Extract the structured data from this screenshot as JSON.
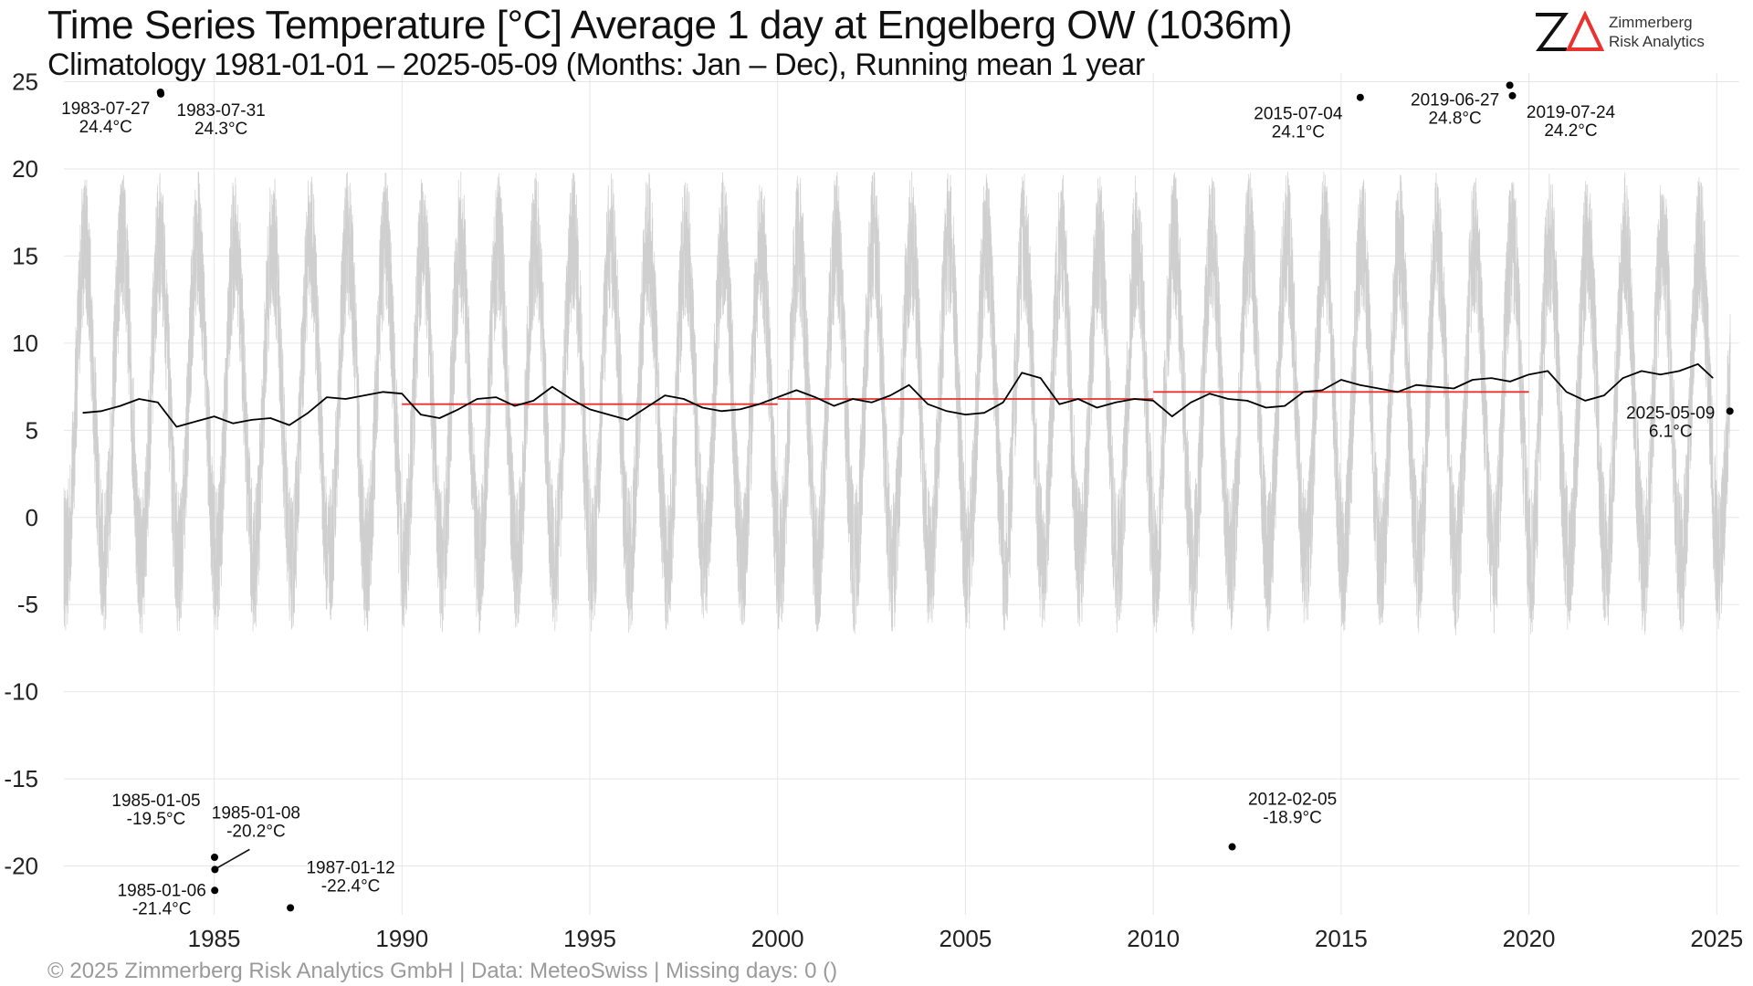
{
  "chart_data": {
    "type": "line",
    "title": "Time Series Temperature [°C] Average 1 day at Engelberg  OW (1036m)",
    "subtitle": "Climatology 1981-01-01 – 2025-05-09 (Months: Jan – Dec), Running mean 1 year",
    "xlabel": "",
    "ylabel": "",
    "xlim": [
      1981.0,
      2025.6
    ],
    "ylim": [
      -22.8,
      25.5
    ],
    "grid": true,
    "x_ticks": [
      1985,
      1990,
      1995,
      2000,
      2005,
      2010,
      2015,
      2020,
      2025
    ],
    "y_ticks": [
      25,
      20,
      15,
      10,
      5,
      0,
      -5,
      -10,
      -15,
      -20
    ],
    "colors": {
      "daily": "#cfcfcf",
      "running_mean": "#000000",
      "decade_mean": "#e8332e",
      "extreme_point": "#000000",
      "grid": "#e6e6e6"
    },
    "running_mean": {
      "x": [
        1981.5,
        1982.0,
        1982.5,
        1983.0,
        1983.5,
        1984.0,
        1984.5,
        1985.0,
        1985.5,
        1986.0,
        1986.5,
        1987.0,
        1987.5,
        1988.0,
        1988.5,
        1989.0,
        1989.5,
        1990.0,
        1990.5,
        1991.0,
        1991.5,
        1992.0,
        1992.5,
        1993.0,
        1993.5,
        1994.0,
        1994.5,
        1995.0,
        1995.5,
        1996.0,
        1996.5,
        1997.0,
        1997.5,
        1998.0,
        1998.5,
        1999.0,
        1999.5,
        2000.0,
        2000.5,
        2001.0,
        2001.5,
        2002.0,
        2002.5,
        2003.0,
        2003.5,
        2004.0,
        2004.5,
        2005.0,
        2005.5,
        2006.0,
        2006.5,
        2007.0,
        2007.5,
        2008.0,
        2008.5,
        2009.0,
        2009.5,
        2010.0,
        2010.5,
        2011.0,
        2011.5,
        2012.0,
        2012.5,
        2013.0,
        2013.5,
        2014.0,
        2014.5,
        2015.0,
        2015.5,
        2016.0,
        2016.5,
        2017.0,
        2017.5,
        2018.0,
        2018.5,
        2019.0,
        2019.5,
        2020.0,
        2020.5,
        2021.0,
        2021.5,
        2022.0,
        2022.5,
        2023.0,
        2023.5,
        2024.0,
        2024.5,
        2024.9
      ],
      "y": [
        6.0,
        6.1,
        6.4,
        6.8,
        6.6,
        5.2,
        5.5,
        5.8,
        5.4,
        5.6,
        5.7,
        5.3,
        6.0,
        6.9,
        6.8,
        7.0,
        7.2,
        7.1,
        5.9,
        5.7,
        6.2,
        6.8,
        6.9,
        6.4,
        6.7,
        7.5,
        6.8,
        6.2,
        5.9,
        5.6,
        6.3,
        7.0,
        6.8,
        6.3,
        6.1,
        6.2,
        6.5,
        6.9,
        7.3,
        6.9,
        6.4,
        6.8,
        6.6,
        7.0,
        7.6,
        6.5,
        6.1,
        5.9,
        6.0,
        6.6,
        8.3,
        8.0,
        6.5,
        6.8,
        6.3,
        6.6,
        6.8,
        6.7,
        5.8,
        6.6,
        7.1,
        6.8,
        6.7,
        6.3,
        6.4,
        7.2,
        7.3,
        7.9,
        7.6,
        7.4,
        7.2,
        7.6,
        7.5,
        7.4,
        7.9,
        8.0,
        7.8,
        8.2,
        8.4,
        7.2,
        6.7,
        7.0,
        8.0,
        8.4,
        8.2,
        8.4,
        8.8,
        8.0
      ]
    },
    "decade_means": [
      {
        "x": [
          1990.0,
          2000.0
        ],
        "y": 6.5
      },
      {
        "x": [
          2000.0,
          2010.0
        ],
        "y": 6.8
      },
      {
        "x": [
          2010.0,
          2020.0
        ],
        "y": 7.2
      }
    ],
    "seasonal_daily": {
      "mean": 6.6,
      "amplitude": 9.2,
      "noise": 4.2,
      "peak_fraction_of_year": 0.56
    },
    "extremes": [
      {
        "x": 1983.57,
        "y": 24.4,
        "date": "1983-07-27",
        "value": "24.4°C"
      },
      {
        "x": 1983.58,
        "y": 24.3,
        "date": "1983-07-31",
        "value": "24.3°C"
      },
      {
        "x": 2015.51,
        "y": 24.1,
        "date": "2015-07-04",
        "value": "24.1°C"
      },
      {
        "x": 2019.49,
        "y": 24.8,
        "date": "2019-06-27",
        "value": "24.8°C"
      },
      {
        "x": 2019.56,
        "y": 24.2,
        "date": "2019-07-24",
        "value": "24.2°C"
      },
      {
        "x": 2025.35,
        "y": 6.1,
        "date": "2025-05-09",
        "value": "6.1°C"
      },
      {
        "x": 1985.01,
        "y": -19.5,
        "date": "1985-01-05",
        "value": "-19.5°C"
      },
      {
        "x": 1985.02,
        "y": -20.2,
        "date": "1985-01-08",
        "value": "-20.2°C"
      },
      {
        "x": 1985.015,
        "y": -21.4,
        "date": "1985-01-06",
        "value": "-21.4°C"
      },
      {
        "x": 1987.03,
        "y": -22.4,
        "date": "1987-01-12",
        "value": "-22.4°C"
      },
      {
        "x": 2012.1,
        "y": -18.9,
        "date": "2012-02-05",
        "value": "-18.9°C"
      }
    ]
  },
  "logo": {
    "line1": "Zimmerberg",
    "line2": "Risk Analytics"
  },
  "footer": "©  2025 Zimmerberg Risk Analytics GmbH | Data: MeteoSwiss | Missing days: 0 ()"
}
